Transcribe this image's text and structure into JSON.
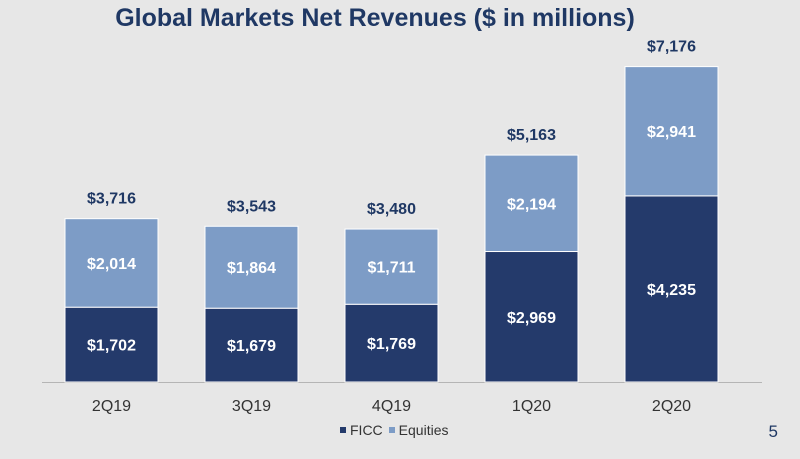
{
  "page_number": "5",
  "chart_data": {
    "type": "bar",
    "stacked": true,
    "title": "Global Markets Net Revenues ($ in millions)",
    "categories": [
      "2Q19",
      "3Q19",
      "4Q19",
      "1Q20",
      "2Q20"
    ],
    "series": [
      {
        "name": "FICC",
        "color": "#243a6b",
        "values": [
          1702,
          1679,
          1769,
          2969,
          4235
        ],
        "labels": [
          "$1,702",
          "$1,679",
          "$1,769",
          "$2,969",
          "$4,235"
        ]
      },
      {
        "name": "Equities",
        "color": "#7d9cc6",
        "values": [
          2014,
          1864,
          1711,
          2194,
          2941
        ],
        "labels": [
          "$2,014",
          "$1,864",
          "$1,711",
          "$2,194",
          "$2,941"
        ]
      }
    ],
    "totals": [
      3716,
      3543,
      3480,
      5163,
      7176
    ],
    "total_labels": [
      "$3,716",
      "$3,543",
      "$3,480",
      "$5,163",
      "$7,176"
    ],
    "legend": [
      "FICC",
      "Equities"
    ],
    "legend_position": "bottom",
    "grid": false
  }
}
